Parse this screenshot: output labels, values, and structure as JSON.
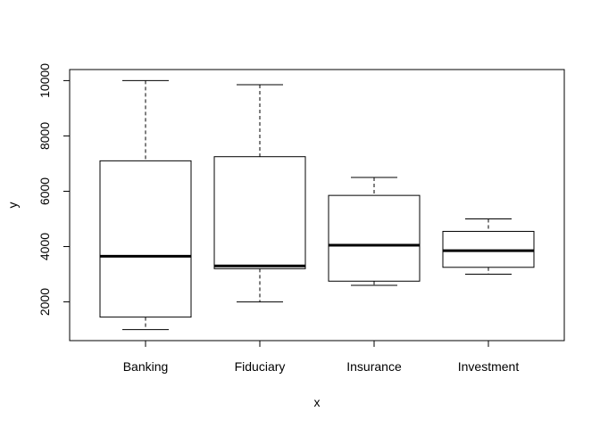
{
  "chart_data": {
    "type": "boxplot",
    "xlabel": "x",
    "ylabel": "y",
    "ylim": [
      600,
      10400
    ],
    "yticks": [
      2000,
      4000,
      6000,
      8000,
      10000
    ],
    "grid": false,
    "legend": "none",
    "categories": [
      "Banking",
      "Fiduciary",
      "Insurance",
      "Investment"
    ],
    "boxes": [
      {
        "category": "Banking",
        "min": 1000,
        "q1": 1450,
        "median": 3650,
        "q3": 7100,
        "max": 10000
      },
      {
        "category": "Fiduciary",
        "min": 2000,
        "q1": 3200,
        "median": 3300,
        "q3": 7250,
        "max": 9850
      },
      {
        "category": "Insurance",
        "min": 2600,
        "q1": 2750,
        "median": 4050,
        "q3": 5850,
        "max": 6500
      },
      {
        "category": "Investment",
        "min": 3000,
        "q1": 3250,
        "median": 3850,
        "q3": 4550,
        "max": 5000
      }
    ]
  }
}
